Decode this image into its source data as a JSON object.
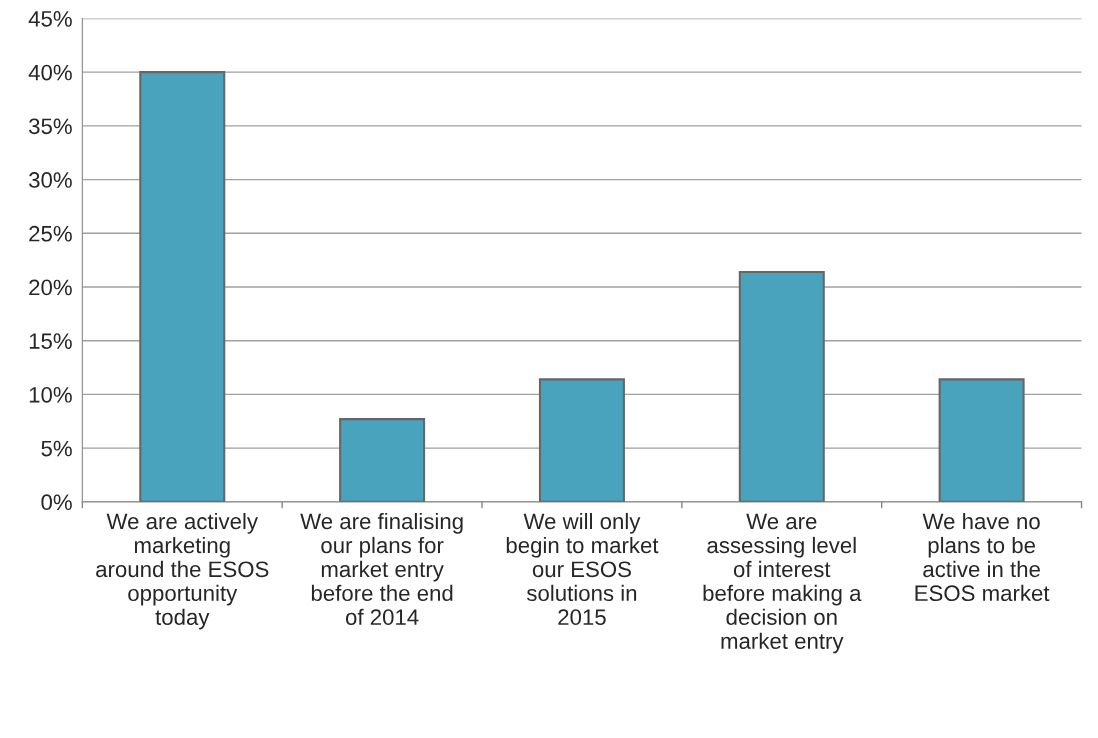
{
  "chart_data": {
    "type": "bar",
    "categories": [
      "We are actively\nmarketing\naround the ESOS\nopportunity\ntoday",
      "We are finalising\nour plans for\nmarket entry\nbefore the end\nof 2014",
      "We will only\nbegin to market\nour ESOS\nsolutions in\n2015",
      "We are\nassessing level\nof interest\nbefore making a\ndecision on\nmarket entry",
      "We have no\nplans to be\nactive in the\nESOS market"
    ],
    "values": [
      40,
      7.7,
      11.4,
      21.4,
      11.4
    ],
    "color": "#4aa3bd",
    "ylim": [
      0,
      45
    ],
    "yticks": [
      {
        "value": 0,
        "label": "0%"
      },
      {
        "value": 5,
        "label": "5%"
      },
      {
        "value": 10,
        "label": "10%"
      },
      {
        "value": 15,
        "label": "15%"
      },
      {
        "value": 20,
        "label": "20%"
      },
      {
        "value": 25,
        "label": "25%"
      },
      {
        "value": 30,
        "label": "30%"
      },
      {
        "value": 35,
        "label": "35%"
      },
      {
        "value": 40,
        "label": "40%"
      },
      {
        "value": 45,
        "label": "45%"
      }
    ],
    "grid": "y"
  }
}
